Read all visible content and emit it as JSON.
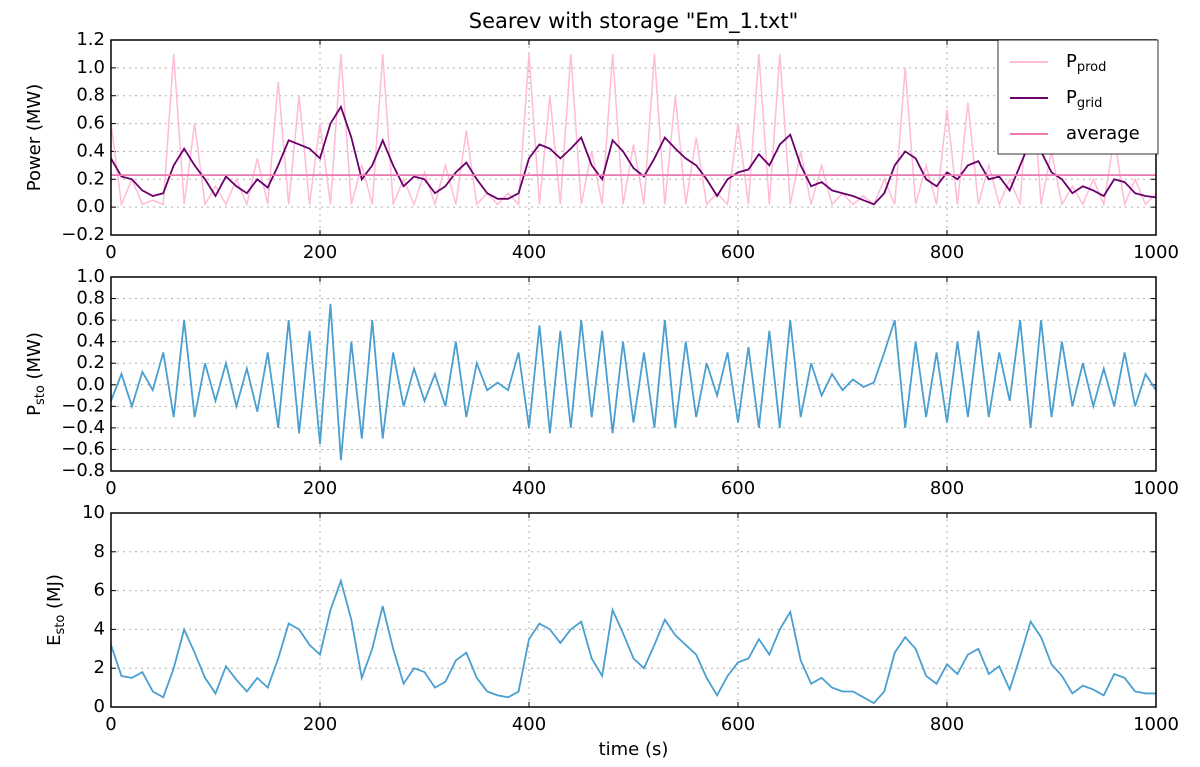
{
  "chart_data": [
    {
      "type": "line",
      "title": "Searev with storage \"Em_1.txt\"",
      "ylabel": "Power (MW)",
      "x": [
        0,
        10,
        20,
        30,
        40,
        50,
        60,
        70,
        80,
        90,
        100,
        110,
        120,
        130,
        140,
        150,
        160,
        170,
        180,
        190,
        200,
        210,
        220,
        230,
        240,
        250,
        260,
        270,
        280,
        290,
        300,
        310,
        320,
        330,
        340,
        350,
        360,
        370,
        380,
        390,
        400,
        410,
        420,
        430,
        440,
        450,
        460,
        470,
        480,
        490,
        500,
        510,
        520,
        530,
        540,
        550,
        560,
        570,
        580,
        590,
        600,
        610,
        620,
        630,
        640,
        650,
        660,
        670,
        680,
        690,
        700,
        710,
        720,
        730,
        740,
        750,
        760,
        770,
        780,
        790,
        800,
        810,
        820,
        830,
        840,
        850,
        860,
        870,
        880,
        890,
        900,
        910,
        920,
        930,
        940,
        950,
        960,
        970,
        980,
        990,
        1000
      ],
      "series": [
        {
          "name": "P",
          "subscript": "prod",
          "color": "#ffbbd9",
          "values": [
            0.6,
            0.02,
            0.2,
            0.02,
            0.05,
            0.02,
            1.1,
            0.02,
            0.6,
            0.02,
            0.15,
            0.02,
            0.2,
            0.02,
            0.35,
            0.02,
            0.9,
            0.02,
            0.8,
            0.02,
            0.6,
            0.02,
            1.1,
            0.02,
            0.3,
            0.02,
            1.1,
            0.02,
            0.2,
            0.02,
            0.25,
            0.02,
            0.3,
            0.02,
            0.55,
            0.02,
            0.1,
            0.02,
            0.1,
            0.02,
            1.1,
            0.02,
            0.8,
            0.02,
            1.1,
            0.02,
            0.4,
            0.02,
            1.1,
            0.02,
            0.45,
            0.02,
            1.1,
            0.02,
            0.8,
            0.02,
            0.5,
            0.02,
            0.1,
            0.02,
            0.6,
            0.02,
            1.1,
            0.02,
            1.1,
            0.02,
            0.4,
            0.02,
            0.3,
            0.02,
            0.1,
            0.02,
            0.08,
            0.02,
            0.2,
            0.02,
            1.0,
            0.02,
            0.3,
            0.02,
            0.7,
            0.02,
            0.75,
            0.02,
            0.3,
            0.02,
            0.2,
            0.02,
            1.1,
            0.02,
            0.4,
            0.02,
            0.15,
            0.02,
            0.2,
            0.02,
            0.5,
            0.02,
            0.2,
            0.02,
            0.1
          ]
        },
        {
          "name": "P",
          "subscript": "grid",
          "color": "#6b006b",
          "values": [
            0.35,
            0.22,
            0.2,
            0.12,
            0.08,
            0.1,
            0.3,
            0.42,
            0.3,
            0.2,
            0.08,
            0.22,
            0.15,
            0.1,
            0.2,
            0.14,
            0.3,
            0.48,
            0.45,
            0.42,
            0.35,
            0.6,
            0.72,
            0.5,
            0.2,
            0.3,
            0.48,
            0.3,
            0.15,
            0.22,
            0.2,
            0.1,
            0.15,
            0.25,
            0.32,
            0.2,
            0.1,
            0.06,
            0.06,
            0.1,
            0.35,
            0.45,
            0.42,
            0.35,
            0.42,
            0.5,
            0.3,
            0.2,
            0.48,
            0.4,
            0.28,
            0.22,
            0.35,
            0.5,
            0.42,
            0.35,
            0.3,
            0.2,
            0.08,
            0.2,
            0.25,
            0.27,
            0.38,
            0.3,
            0.45,
            0.52,
            0.3,
            0.15,
            0.18,
            0.12,
            0.1,
            0.08,
            0.05,
            0.02,
            0.1,
            0.3,
            0.4,
            0.35,
            0.2,
            0.15,
            0.25,
            0.2,
            0.3,
            0.33,
            0.2,
            0.22,
            0.12,
            0.3,
            0.48,
            0.4,
            0.25,
            0.2,
            0.1,
            0.15,
            0.12,
            0.08,
            0.2,
            0.18,
            0.1,
            0.08,
            0.07
          ]
        }
      ],
      "average": {
        "name": "average",
        "color": "#e87ab0",
        "value": 0.23
      },
      "xlim": [
        0,
        1000
      ],
      "xticks": [
        0,
        200,
        400,
        600,
        800,
        1000
      ],
      "ylim": [
        -0.2,
        1.2
      ],
      "yticks": [
        {
          "value": -0.2,
          "label": "−0.2"
        },
        {
          "value": 0,
          "label": "0.0"
        },
        {
          "value": 0.2,
          "label": "0.2"
        },
        {
          "value": 0.4,
          "label": "0.4"
        },
        {
          "value": 0.6,
          "label": "0.6"
        },
        {
          "value": 0.8,
          "label": "0.8"
        },
        {
          "value": 1.0,
          "label": "1.0"
        },
        {
          "value": 1.2,
          "label": "1.2"
        }
      ],
      "grid": true,
      "legend": "upper right"
    },
    {
      "type": "line",
      "ylabel": {
        "text": "P",
        "sub": "sto",
        "unit": " (MW)"
      },
      "x": [
        0,
        10,
        20,
        30,
        40,
        50,
        60,
        70,
        80,
        90,
        100,
        110,
        120,
        130,
        140,
        150,
        160,
        170,
        180,
        190,
        200,
        210,
        220,
        230,
        240,
        250,
        260,
        270,
        280,
        290,
        300,
        310,
        320,
        330,
        340,
        350,
        360,
        370,
        380,
        390,
        400,
        410,
        420,
        430,
        440,
        450,
        460,
        470,
        480,
        490,
        500,
        510,
        520,
        530,
        540,
        550,
        560,
        570,
        580,
        590,
        600,
        610,
        620,
        630,
        640,
        650,
        660,
        670,
        680,
        690,
        700,
        710,
        720,
        730,
        740,
        750,
        760,
        770,
        780,
        790,
        800,
        810,
        820,
        830,
        840,
        850,
        860,
        870,
        880,
        890,
        900,
        910,
        920,
        930,
        940,
        950,
        960,
        970,
        980,
        990,
        1000
      ],
      "series": [
        {
          "color": "#4a9fd0",
          "values": [
            -0.15,
            0.1,
            -0.2,
            0.12,
            -0.05,
            0.3,
            -0.3,
            0.6,
            -0.3,
            0.2,
            -0.15,
            0.2,
            -0.2,
            0.15,
            -0.25,
            0.3,
            -0.4,
            0.6,
            -0.45,
            0.5,
            -0.55,
            0.75,
            -0.7,
            0.4,
            -0.5,
            0.6,
            -0.5,
            0.3,
            -0.2,
            0.15,
            -0.15,
            0.1,
            -0.2,
            0.4,
            -0.3,
            0.2,
            -0.05,
            0.02,
            -0.05,
            0.3,
            -0.4,
            0.55,
            -0.45,
            0.5,
            -0.4,
            0.6,
            -0.3,
            0.5,
            -0.45,
            0.4,
            -0.35,
            0.3,
            -0.4,
            0.6,
            -0.4,
            0.4,
            -0.3,
            0.2,
            -0.1,
            0.3,
            -0.35,
            0.35,
            -0.4,
            0.5,
            -0.4,
            0.6,
            -0.3,
            0.2,
            -0.1,
            0.1,
            -0.05,
            0.05,
            -0.02,
            0.02,
            0.3,
            0.6,
            -0.4,
            0.4,
            -0.3,
            0.3,
            -0.35,
            0.4,
            -0.3,
            0.5,
            -0.3,
            0.3,
            -0.15,
            0.6,
            -0.4,
            0.6,
            -0.3,
            0.4,
            -0.2,
            0.2,
            -0.2,
            0.15,
            -0.2,
            0.3,
            -0.2,
            0.1,
            -0.05
          ]
        }
      ],
      "xlim": [
        0,
        1000
      ],
      "xticks": [
        0,
        200,
        400,
        600,
        800,
        1000
      ],
      "ylim": [
        -0.8,
        1.0
      ],
      "yticks": [
        {
          "value": -0.8,
          "label": "−0.8"
        },
        {
          "value": -0.6,
          "label": "−0.6"
        },
        {
          "value": -0.4,
          "label": "−0.4"
        },
        {
          "value": -0.2,
          "label": "−0.2"
        },
        {
          "value": 0,
          "label": "0.0"
        },
        {
          "value": 0.2,
          "label": "0.2"
        },
        {
          "value": 0.4,
          "label": "0.4"
        },
        {
          "value": 0.6,
          "label": "0.6"
        },
        {
          "value": 0.8,
          "label": "0.8"
        },
        {
          "value": 1.0,
          "label": "1.0"
        }
      ],
      "grid": true
    },
    {
      "type": "line",
      "ylabel": {
        "text": "E",
        "sub": "sto",
        "unit": " (MJ)"
      },
      "xlabel": "time (s)",
      "x": [
        0,
        10,
        20,
        30,
        40,
        50,
        60,
        70,
        80,
        90,
        100,
        110,
        120,
        130,
        140,
        150,
        160,
        170,
        180,
        190,
        200,
        210,
        220,
        230,
        240,
        250,
        260,
        270,
        280,
        290,
        300,
        310,
        320,
        330,
        340,
        350,
        360,
        370,
        380,
        390,
        400,
        410,
        420,
        430,
        440,
        450,
        460,
        470,
        480,
        490,
        500,
        510,
        520,
        530,
        540,
        550,
        560,
        570,
        580,
        590,
        600,
        610,
        620,
        630,
        640,
        650,
        660,
        670,
        680,
        690,
        700,
        710,
        720,
        730,
        740,
        750,
        760,
        770,
        780,
        790,
        800,
        810,
        820,
        830,
        840,
        850,
        860,
        870,
        880,
        890,
        900,
        910,
        920,
        930,
        940,
        950,
        960,
        970,
        980,
        990,
        1000
      ],
      "series": [
        {
          "color": "#4a9fd0",
          "values": [
            3.2,
            1.6,
            1.5,
            1.8,
            0.8,
            0.5,
            2,
            4,
            2.8,
            1.5,
            0.7,
            2.1,
            1.4,
            0.8,
            1.5,
            1,
            2.5,
            4.3,
            4,
            3.2,
            2.7,
            5,
            6.5,
            4.5,
            1.5,
            3,
            5.2,
            3,
            1.2,
            2,
            1.8,
            1,
            1.3,
            2.4,
            2.8,
            1.5,
            0.8,
            0.6,
            0.5,
            0.8,
            3.5,
            4.3,
            4,
            3.3,
            4,
            4.4,
            2.5,
            1.6,
            5,
            3.8,
            2.5,
            2,
            3.2,
            4.5,
            3.7,
            3.2,
            2.7,
            1.5,
            0.6,
            1.6,
            2.3,
            2.5,
            3.5,
            2.7,
            4,
            4.9,
            2.4,
            1.2,
            1.5,
            1,
            0.8,
            0.8,
            0.5,
            0.2,
            0.8,
            2.8,
            3.6,
            3,
            1.6,
            1.2,
            2.2,
            1.7,
            2.7,
            3,
            1.7,
            2.1,
            0.9,
            2.6,
            4.4,
            3.6,
            2.2,
            1.6,
            0.7,
            1.1,
            0.9,
            0.6,
            1.7,
            1.5,
            0.8,
            0.7,
            0.7
          ]
        }
      ],
      "xlim": [
        0,
        1000
      ],
      "xticks": [
        0,
        200,
        400,
        600,
        800,
        1000
      ],
      "ylim": [
        0,
        10
      ],
      "yticks": [
        0,
        2,
        4,
        6,
        8,
        10
      ],
      "grid": true
    }
  ]
}
